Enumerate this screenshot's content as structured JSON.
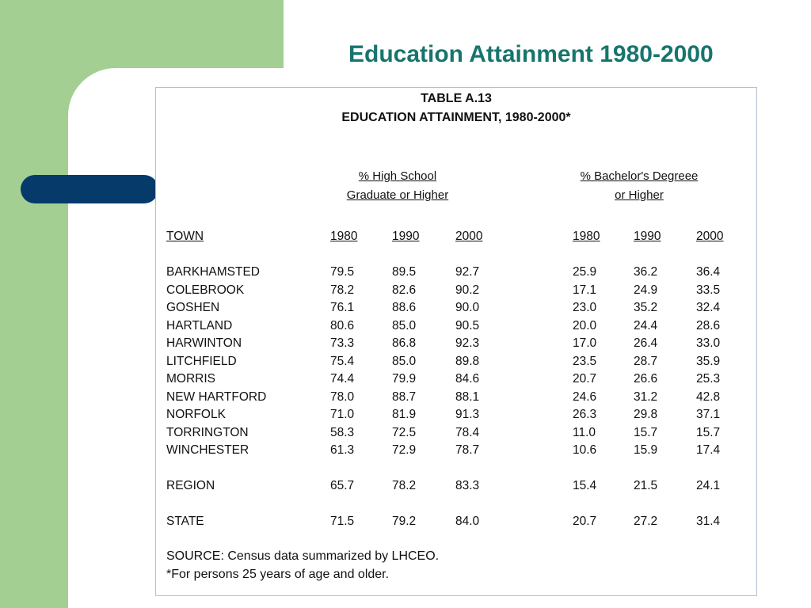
{
  "slide": {
    "title": "Education Attainment 1980-2000"
  },
  "table": {
    "caption_line1": "TABLE A.13",
    "caption_line2": "EDUCATION ATTAINMENT, 1980-2000*",
    "group_high_school": [
      "% High School",
      "Graduate or Higher"
    ],
    "group_bachelor": [
      "% Bachelor's Degreee",
      "or Higher"
    ],
    "columns": [
      "TOWN",
      "1980",
      "1990",
      "2000",
      "1980",
      "1990",
      "2000"
    ],
    "rows": [
      [
        "BARKHAMSTED",
        "79.5",
        "89.5",
        "92.7",
        "25.9",
        "36.2",
        "36.4"
      ],
      [
        "COLEBROOK",
        "78.2",
        "82.6",
        "90.2",
        "17.1",
        "24.9",
        "33.5"
      ],
      [
        "GOSHEN",
        "76.1",
        "88.6",
        "90.0",
        "23.0",
        "35.2",
        "32.4"
      ],
      [
        "HARTLAND",
        "80.6",
        "85.0",
        "90.5",
        "20.0",
        "24.4",
        "28.6"
      ],
      [
        "HARWINTON",
        "73.3",
        "86.8",
        "92.3",
        "17.0",
        "26.4",
        "33.0"
      ],
      [
        "LITCHFIELD",
        "75.4",
        "85.0",
        "89.8",
        "23.5",
        "28.7",
        "35.9"
      ],
      [
        "MORRIS",
        "74.4",
        "79.9",
        "84.6",
        "20.7",
        "26.6",
        "25.3"
      ],
      [
        "NEW HARTFORD",
        "78.0",
        "88.7",
        "88.1",
        "24.6",
        "31.2",
        "42.8"
      ],
      [
        "NORFOLK",
        "71.0",
        "81.9",
        "91.3",
        "26.3",
        "29.8",
        "37.1"
      ],
      [
        "TORRINGTON",
        "58.3",
        "72.5",
        "78.4",
        "11.0",
        "15.7",
        "15.7"
      ],
      [
        "WINCHESTER",
        "61.3",
        "72.9",
        "78.7",
        "10.6",
        "15.9",
        "17.4"
      ]
    ],
    "region": [
      "REGION",
      "65.7",
      "78.2",
      "83.3",
      "15.4",
      "21.5",
      "24.1"
    ],
    "state": [
      "STATE",
      "71.5",
      "79.2",
      "84.0",
      "20.7",
      "27.2",
      "31.4"
    ],
    "source": "SOURCE:  Census data summarized by LHCEO.",
    "footnote": "*For persons 25 years of age and older."
  }
}
